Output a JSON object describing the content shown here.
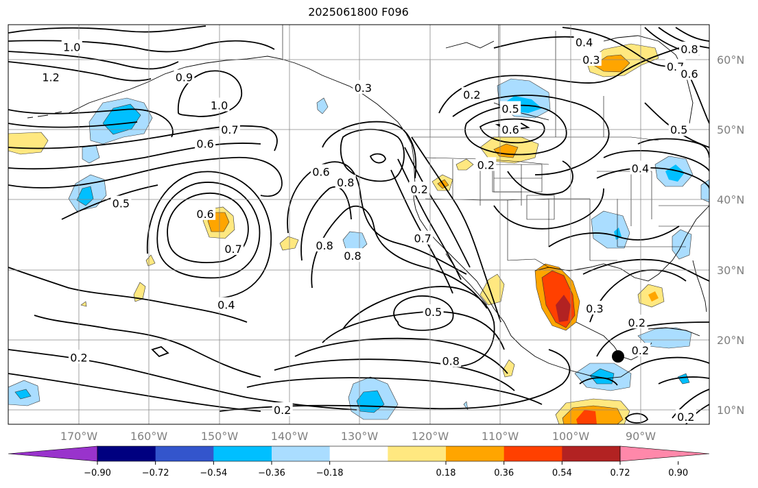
{
  "title": "2025061800 F096",
  "lon_labels": [
    "170°W",
    "160°W",
    "150°W",
    "140°W",
    "130°W",
    "120°W",
    "110°W",
    "100°W",
    "90°W"
  ],
  "lat_labels": [
    "60°N",
    "50°N",
    "40°N",
    "30°N",
    "20°N",
    "10°N"
  ],
  "colorbar": {
    "colors": [
      "#9933cc",
      "#000080",
      "#3355cc",
      "#00bfff",
      "#aaddff",
      "#ffffff",
      "#ffe880",
      "#ffa500",
      "#ff4000",
      "#b22222",
      "#ff88aa"
    ],
    "tick_labels": [
      "−0.90",
      "−0.72",
      "−0.54",
      "−0.36",
      "−0.18",
      "0.18",
      "0.36",
      "0.54",
      "0.72",
      "0.90"
    ]
  },
  "contour_labels": [
    {
      "text": "1.0",
      "lon": -171,
      "lat": 61.8
    },
    {
      "text": "1.2",
      "lon": -174,
      "lat": 57.5
    },
    {
      "text": "0.9",
      "lon": -155,
      "lat": 57.5
    },
    {
      "text": "1.0",
      "lon": -150,
      "lat": 53.5
    },
    {
      "text": "0.7",
      "lon": -148.5,
      "lat": 50
    },
    {
      "text": "0.6",
      "lon": -152,
      "lat": 48
    },
    {
      "text": "0.5",
      "lon": -164,
      "lat": 39.5
    },
    {
      "text": "0.6",
      "lon": -152,
      "lat": 38
    },
    {
      "text": "0.7",
      "lon": -148,
      "lat": 33
    },
    {
      "text": "0.4",
      "lon": -149,
      "lat": 25
    },
    {
      "text": "0.2",
      "lon": -170,
      "lat": 17.5
    },
    {
      "text": "0.2",
      "lon": -141,
      "lat": 10
    },
    {
      "text": "0.6",
      "lon": -135.5,
      "lat": 44
    },
    {
      "text": "0.8",
      "lon": -132,
      "lat": 42.5
    },
    {
      "text": "0.8",
      "lon": -135,
      "lat": 33.5
    },
    {
      "text": "0.8",
      "lon": -131,
      "lat": 32
    },
    {
      "text": "0.7",
      "lon": -121,
      "lat": 34.5
    },
    {
      "text": "0.5",
      "lon": -119.5,
      "lat": 24
    },
    {
      "text": "0.8",
      "lon": -117,
      "lat": 17
    },
    {
      "text": "0.3",
      "lon": -129.5,
      "lat": 56
    },
    {
      "text": "0.2",
      "lon": -114,
      "lat": 55
    },
    {
      "text": "0.5",
      "lon": -108.5,
      "lat": 53
    },
    {
      "text": "0.6",
      "lon": -108.5,
      "lat": 50
    },
    {
      "text": "0.2",
      "lon": -112,
      "lat": 45
    },
    {
      "text": "0.2",
      "lon": -121.5,
      "lat": 41.5
    },
    {
      "text": "0.4",
      "lon": -98,
      "lat": 62.5
    },
    {
      "text": "0.3",
      "lon": -97,
      "lat": 60
    },
    {
      "text": "0.8",
      "lon": -83,
      "lat": 61.5
    },
    {
      "text": "0.7",
      "lon": -85,
      "lat": 59
    },
    {
      "text": "0.6",
      "lon": -83,
      "lat": 58
    },
    {
      "text": "0.5",
      "lon": -84.5,
      "lat": 50
    },
    {
      "text": "0.4",
      "lon": -90,
      "lat": 44.5
    },
    {
      "text": "0.3",
      "lon": -96.5,
      "lat": 24.5
    },
    {
      "text": "0.2",
      "lon": -90.5,
      "lat": 22.5
    },
    {
      "text": "0.2",
      "lon": -90,
      "lat": 18.5
    },
    {
      "text": "0.2",
      "lon": -83.5,
      "lat": 9
    }
  ]
}
